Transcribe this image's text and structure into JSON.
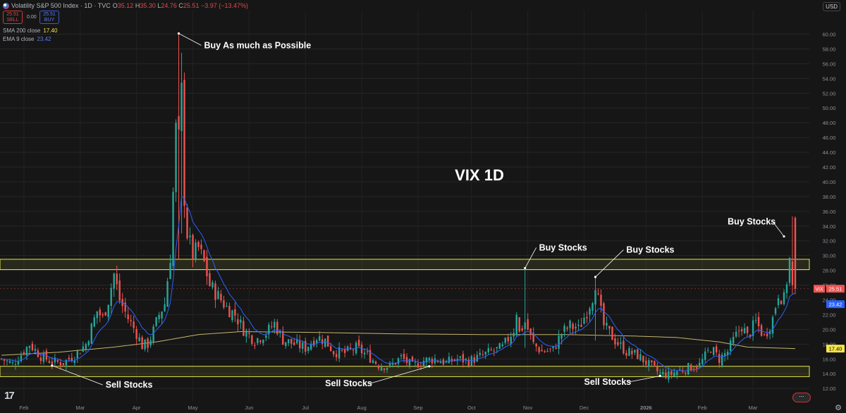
{
  "header": {
    "title": "Volatility S&P 500 Index · 1D · TVC",
    "ohlc": {
      "o_label": "O",
      "o": "35.12",
      "h_label": "H",
      "h": "35.30",
      "l_label": "L",
      "l": "24.76",
      "c_label": "C",
      "c": "25.51",
      "change": "−3.97 (−13.47%)"
    },
    "sell": {
      "price": "25.51",
      "label": "SELL"
    },
    "spread": "0.00",
    "buy": {
      "price": "25.51",
      "label": "BUY"
    },
    "sma": {
      "label": "SMA 200 close",
      "value": "17.40"
    },
    "ema": {
      "label": "EMA 9 close",
      "value": "23.42"
    },
    "currency": "USD"
  },
  "colors": {
    "background": "#161616",
    "up": "#26a69a",
    "down": "#ef5350",
    "sma": "#c7b46a",
    "ema": "#2962ff",
    "zone": "#e6e64a",
    "annotation": "#ffffff"
  },
  "icons": [
    "us-flag-icon",
    "tradingview-logo-icon",
    "gear-icon"
  ],
  "chart_data": {
    "type": "candlestick",
    "title": "VIX 1D",
    "symbol_tag": "VIX",
    "x_labels": [
      "Feb",
      "Mar",
      "Apr",
      "May",
      "Jun",
      "Jul",
      "Aug",
      "Sep",
      "Oct",
      "Nov",
      "Dec",
      "2026",
      "Feb",
      "Mar"
    ],
    "y_ticks": [
      "12.00",
      "14.00",
      "16.00",
      "18.00",
      "20.00",
      "22.00",
      "24.00",
      "26.00",
      "28.00",
      "30.00",
      "32.00",
      "34.00",
      "36.00",
      "38.00",
      "40.00",
      "42.00",
      "44.00",
      "46.00",
      "48.00",
      "50.00",
      "52.00",
      "54.00",
      "56.00",
      "58.00",
      "60.00"
    ],
    "ylim": [
      10.2,
      63.2
    ],
    "grid": true,
    "last_price": "25.51",
    "zones": [
      {
        "name": "resistance",
        "low": 28.1,
        "high": 29.5
      },
      {
        "name": "support",
        "low": 13.6,
        "high": 15.0
      }
    ],
    "price_tags": [
      {
        "text": "25.51",
        "value": 25.51,
        "color": "#ef5350",
        "prefix": "VIX"
      },
      {
        "text": "23.42",
        "value": 23.42,
        "color": "#2962ff"
      },
      {
        "text": "17.40",
        "value": 17.4,
        "color": "#f5e54a"
      }
    ],
    "key_points": [
      {
        "idx": 0,
        "v": 16.0
      },
      {
        "idx": 4,
        "v": 15.3
      },
      {
        "idx": 10,
        "v": 18.0
      },
      {
        "idx": 14,
        "v": 16.4
      },
      {
        "idx": 18,
        "v": 15.6
      },
      {
        "idx": 22,
        "v": 15.5
      },
      {
        "idx": 26,
        "v": 16.5
      },
      {
        "idx": 30,
        "v": 18.0
      },
      {
        "idx": 34,
        "v": 22.5
      },
      {
        "idx": 36,
        "v": 21.5
      },
      {
        "idx": 38,
        "v": 24.0
      },
      {
        "idx": 40,
        "v": 27.5
      },
      {
        "idx": 42,
        "v": 24.0
      },
      {
        "idx": 45,
        "v": 21.5
      },
      {
        "idx": 48,
        "v": 19.5
      },
      {
        "idx": 50,
        "v": 17.8
      },
      {
        "idx": 52,
        "v": 18.0
      },
      {
        "idx": 54,
        "v": 19.8
      },
      {
        "idx": 56,
        "v": 22.0
      },
      {
        "idx": 58,
        "v": 23.5
      },
      {
        "idx": 60,
        "v": 30.0
      },
      {
        "idx": 62,
        "v": 47.0
      },
      {
        "idx": 63,
        "v": 45.5
      },
      {
        "idx": 64,
        "v": 52.0
      },
      {
        "idx": 65,
        "v": 38.0
      },
      {
        "idx": 66,
        "v": 33.0
      },
      {
        "idx": 68,
        "v": 30.0
      },
      {
        "idx": 70,
        "v": 31.0
      },
      {
        "idx": 72,
        "v": 29.0
      },
      {
        "idx": 74,
        "v": 26.0
      },
      {
        "idx": 77,
        "v": 24.5
      },
      {
        "idx": 80,
        "v": 23.0
      },
      {
        "idx": 83,
        "v": 22.0
      },
      {
        "idx": 86,
        "v": 20.0
      },
      {
        "idx": 90,
        "v": 18.5
      },
      {
        "idx": 94,
        "v": 19.5
      },
      {
        "idx": 97,
        "v": 20.8
      },
      {
        "idx": 100,
        "v": 18.6
      },
      {
        "idx": 104,
        "v": 18.0
      },
      {
        "idx": 108,
        "v": 17.5
      },
      {
        "idx": 112,
        "v": 19.0
      },
      {
        "idx": 115,
        "v": 18.5
      },
      {
        "idx": 118,
        "v": 17.0
      },
      {
        "idx": 122,
        "v": 16.8
      },
      {
        "idx": 126,
        "v": 17.5
      },
      {
        "idx": 130,
        "v": 16.5
      },
      {
        "idx": 134,
        "v": 15.2
      },
      {
        "idx": 138,
        "v": 15.0
      },
      {
        "idx": 142,
        "v": 16.2
      },
      {
        "idx": 146,
        "v": 15.0
      },
      {
        "idx": 150,
        "v": 15.8
      },
      {
        "idx": 154,
        "v": 16.0
      },
      {
        "idx": 158,
        "v": 15.5
      },
      {
        "idx": 162,
        "v": 16.0
      },
      {
        "idx": 166,
        "v": 15.7
      },
      {
        "idx": 170,
        "v": 16.3
      },
      {
        "idx": 174,
        "v": 17.0
      },
      {
        "idx": 178,
        "v": 17.5
      },
      {
        "idx": 182,
        "v": 20.0
      },
      {
        "idx": 183,
        "v": 22.5
      },
      {
        "idx": 184,
        "v": 19.5
      },
      {
        "idx": 186,
        "v": 21.0
      },
      {
        "idx": 189,
        "v": 18.0
      },
      {
        "idx": 192,
        "v": 17.0
      },
      {
        "idx": 196,
        "v": 17.2
      },
      {
        "idx": 199,
        "v": 19.5
      },
      {
        "idx": 202,
        "v": 20.5
      },
      {
        "idx": 205,
        "v": 20.0
      },
      {
        "idx": 208,
        "v": 22.5
      },
      {
        "idx": 210,
        "v": 24.5
      },
      {
        "idx": 211,
        "v": 26.5
      },
      {
        "idx": 212,
        "v": 24.0
      },
      {
        "idx": 214,
        "v": 20.5
      },
      {
        "idx": 218,
        "v": 18.5
      },
      {
        "idx": 222,
        "v": 17.0
      },
      {
        "idx": 226,
        "v": 16.5
      },
      {
        "idx": 230,
        "v": 15.2
      },
      {
        "idx": 234,
        "v": 14.0
      },
      {
        "idx": 237,
        "v": 13.8
      },
      {
        "idx": 240,
        "v": 14.3
      },
      {
        "idx": 244,
        "v": 14.8
      },
      {
        "idx": 248,
        "v": 15.2
      },
      {
        "idx": 252,
        "v": 17.5
      },
      {
        "idx": 255,
        "v": 16.0
      },
      {
        "idx": 258,
        "v": 17.0
      },
      {
        "idx": 260,
        "v": 18.5
      },
      {
        "idx": 263,
        "v": 20.5
      },
      {
        "idx": 265,
        "v": 19.0
      },
      {
        "idx": 268,
        "v": 21.0
      },
      {
        "idx": 271,
        "v": 19.0
      },
      {
        "idx": 274,
        "v": 21.5
      },
      {
        "idx": 276,
        "v": 25.0
      },
      {
        "idx": 278,
        "v": 24.0
      },
      {
        "idx": 280,
        "v": 29.4
      },
      {
        "idx": 281,
        "v": 25.5
      }
    ],
    "spikes": [
      {
        "idx": 63,
        "high": 60.1,
        "low": 29.5
      },
      {
        "idx": 64,
        "high": 57.5,
        "low": 33.0
      },
      {
        "idx": 186,
        "high": 28.3,
        "low": 17.5
      },
      {
        "idx": 211,
        "high": 27.1,
        "low": 18.5
      },
      {
        "idx": 281,
        "high": 35.3,
        "low": 24.76
      }
    ],
    "annotations": [
      {
        "text": "Buy As much as Possible",
        "idx": 63,
        "value": 60.1,
        "side": "right",
        "label_idx": 72,
        "label_value": 58.1
      },
      {
        "text": "Buy Stocks",
        "idx": 186,
        "value": 28.3,
        "side": "right",
        "label_idx": 191,
        "label_value": 30.7
      },
      {
        "text": "Buy Stocks",
        "idx": 211,
        "value": 27.1,
        "side": "right",
        "label_idx": 222,
        "label_value": 30.4
      },
      {
        "text": "Buy Stocks",
        "idx": 278,
        "value": 32.6,
        "side": "left",
        "label_idx": 258,
        "label_value": 34.2
      },
      {
        "text": "Sell Stocks",
        "idx": 18,
        "value": 15.1,
        "side": "right",
        "label_idx": 37,
        "label_value": 12.1
      },
      {
        "text": "Sell Stocks",
        "idx": 152,
        "value": 15.0,
        "side": "left",
        "label_idx": 115,
        "label_value": 12.3
      },
      {
        "text": "Sell Stocks",
        "idx": 234,
        "value": 13.7,
        "side": "left",
        "label_idx": 207,
        "label_value": 12.5
      }
    ]
  }
}
